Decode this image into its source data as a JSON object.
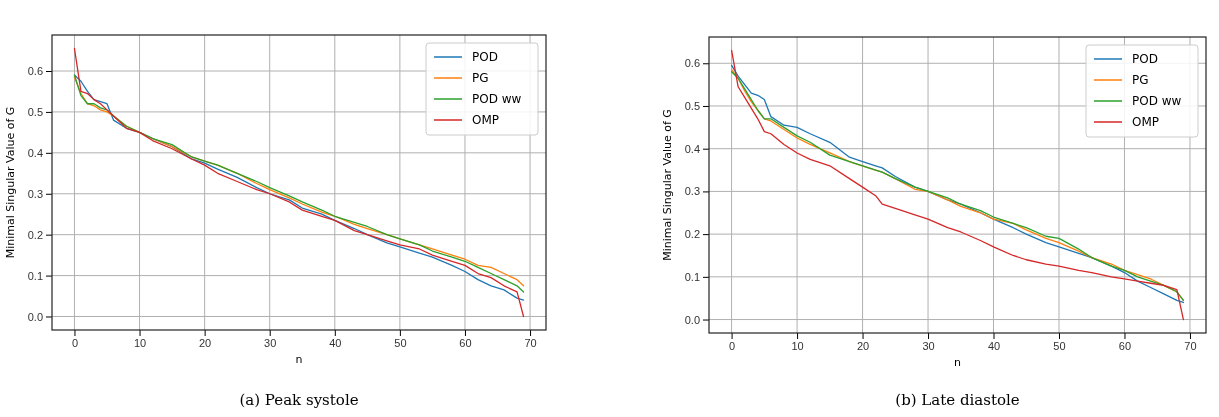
{
  "chart_data": [
    {
      "type": "line",
      "title": "(a) Peak systole",
      "xlabel": "n",
      "ylabel": "Minimal Singular Value of G",
      "x": [
        0,
        1,
        2,
        3,
        4,
        5,
        6,
        8,
        10,
        12,
        15,
        18,
        20,
        22,
        25,
        28,
        30,
        33,
        35,
        38,
        40,
        43,
        45,
        48,
        50,
        53,
        55,
        58,
        60,
        62,
        64,
        66,
        68,
        69
      ],
      "xlim": [
        -3.45,
        72.45
      ],
      "xticks": [
        0,
        10,
        20,
        30,
        40,
        50,
        60,
        70
      ],
      "ylim": [
        -0.033,
        0.688
      ],
      "yticks": [
        {
          "value": 0,
          "label": "0.0"
        },
        0.1,
        0.2,
        0.3,
        0.4,
        0.5,
        0.6
      ],
      "grid": true,
      "legend": "top right",
      "series": [
        {
          "name": "POD",
          "color": "#1f77b4",
          "values": [
            0.59,
            0.575,
            0.55,
            0.53,
            0.525,
            0.52,
            0.48,
            0.46,
            0.45,
            0.435,
            0.415,
            0.385,
            0.375,
            0.36,
            0.34,
            0.315,
            0.3,
            0.285,
            0.265,
            0.25,
            0.235,
            0.215,
            0.2,
            0.18,
            0.17,
            0.155,
            0.145,
            0.125,
            0.11,
            0.09,
            0.075,
            0.065,
            0.045,
            0.04
          ]
        },
        {
          "name": "PG",
          "color": "#ff7f0e",
          "values": [
            0.585,
            0.545,
            0.52,
            0.515,
            0.505,
            0.5,
            0.49,
            0.465,
            0.45,
            0.435,
            0.415,
            0.39,
            0.38,
            0.37,
            0.35,
            0.325,
            0.31,
            0.29,
            0.275,
            0.255,
            0.245,
            0.225,
            0.215,
            0.2,
            0.19,
            0.175,
            0.165,
            0.15,
            0.14,
            0.125,
            0.12,
            0.105,
            0.09,
            0.075
          ]
        },
        {
          "name": "POD ww",
          "color": "#2ca02c",
          "values": [
            0.59,
            0.54,
            0.52,
            0.52,
            0.51,
            0.505,
            0.49,
            0.465,
            0.45,
            0.435,
            0.42,
            0.39,
            0.38,
            0.37,
            0.35,
            0.33,
            0.315,
            0.295,
            0.28,
            0.26,
            0.245,
            0.23,
            0.22,
            0.2,
            0.19,
            0.175,
            0.16,
            0.145,
            0.135,
            0.12,
            0.105,
            0.09,
            0.075,
            0.06
          ]
        },
        {
          "name": "OMP",
          "color": "#d62728",
          "values": [
            0.655,
            0.55,
            0.545,
            0.53,
            0.52,
            0.505,
            0.49,
            0.46,
            0.45,
            0.43,
            0.41,
            0.385,
            0.37,
            0.35,
            0.33,
            0.31,
            0.3,
            0.28,
            0.26,
            0.245,
            0.235,
            0.21,
            0.2,
            0.185,
            0.175,
            0.165,
            0.15,
            0.135,
            0.125,
            0.105,
            0.095,
            0.075,
            0.06,
            0.0
          ]
        }
      ]
    },
    {
      "type": "line",
      "title": "(b) Late diastole",
      "xlabel": "n",
      "ylabel": "Minimal Singular Value of G",
      "x": [
        0,
        1,
        2,
        3,
        4,
        5,
        6,
        8,
        10,
        12,
        15,
        18,
        20,
        22,
        23,
        25,
        28,
        30,
        33,
        35,
        38,
        40,
        43,
        45,
        48,
        50,
        53,
        55,
        58,
        60,
        62,
        64,
        66,
        68,
        69
      ],
      "xlim": [
        -3.45,
        72.45
      ],
      "xticks": [
        0,
        10,
        20,
        30,
        40,
        50,
        60,
        70
      ],
      "ylim": [
        -0.0315,
        0.6615
      ],
      "yticks": [
        {
          "value": 0,
          "label": "0.0"
        },
        0.1,
        0.2,
        0.3,
        0.4,
        0.5,
        0.6
      ],
      "grid": true,
      "legend": "top right",
      "series": [
        {
          "name": "POD",
          "color": "#1f77b4",
          "values": [
            0.595,
            0.57,
            0.55,
            0.53,
            0.525,
            0.515,
            0.475,
            0.455,
            0.45,
            0.435,
            0.415,
            0.38,
            0.37,
            0.36,
            0.355,
            0.335,
            0.31,
            0.3,
            0.28,
            0.27,
            0.25,
            0.235,
            0.215,
            0.2,
            0.18,
            0.17,
            0.155,
            0.145,
            0.125,
            0.11,
            0.09,
            0.075,
            0.06,
            0.045,
            0.04
          ]
        },
        {
          "name": "PG",
          "color": "#ff7f0e",
          "values": [
            0.585,
            0.565,
            0.535,
            0.51,
            0.49,
            0.47,
            0.465,
            0.445,
            0.425,
            0.41,
            0.39,
            0.37,
            0.36,
            0.35,
            0.345,
            0.33,
            0.305,
            0.3,
            0.28,
            0.265,
            0.25,
            0.235,
            0.225,
            0.21,
            0.19,
            0.18,
            0.16,
            0.145,
            0.13,
            0.115,
            0.105,
            0.095,
            0.08,
            0.065,
            0.045
          ]
        },
        {
          "name": "POD ww",
          "color": "#2ca02c",
          "values": [
            0.58,
            0.565,
            0.54,
            0.515,
            0.49,
            0.47,
            0.47,
            0.45,
            0.43,
            0.415,
            0.385,
            0.37,
            0.36,
            0.35,
            0.345,
            0.33,
            0.31,
            0.3,
            0.285,
            0.27,
            0.255,
            0.24,
            0.225,
            0.215,
            0.195,
            0.19,
            0.165,
            0.145,
            0.125,
            0.115,
            0.1,
            0.09,
            0.08,
            0.065,
            0.045
          ]
        },
        {
          "name": "OMP",
          "color": "#d62728",
          "values": [
            0.63,
            0.545,
            0.52,
            0.495,
            0.47,
            0.44,
            0.435,
            0.41,
            0.39,
            0.375,
            0.36,
            0.33,
            0.31,
            0.29,
            0.27,
            0.26,
            0.245,
            0.235,
            0.215,
            0.205,
            0.185,
            0.17,
            0.15,
            0.14,
            0.13,
            0.125,
            0.115,
            0.11,
            0.1,
            0.095,
            0.09,
            0.085,
            0.08,
            0.07,
            0.0
          ]
        }
      ]
    }
  ]
}
